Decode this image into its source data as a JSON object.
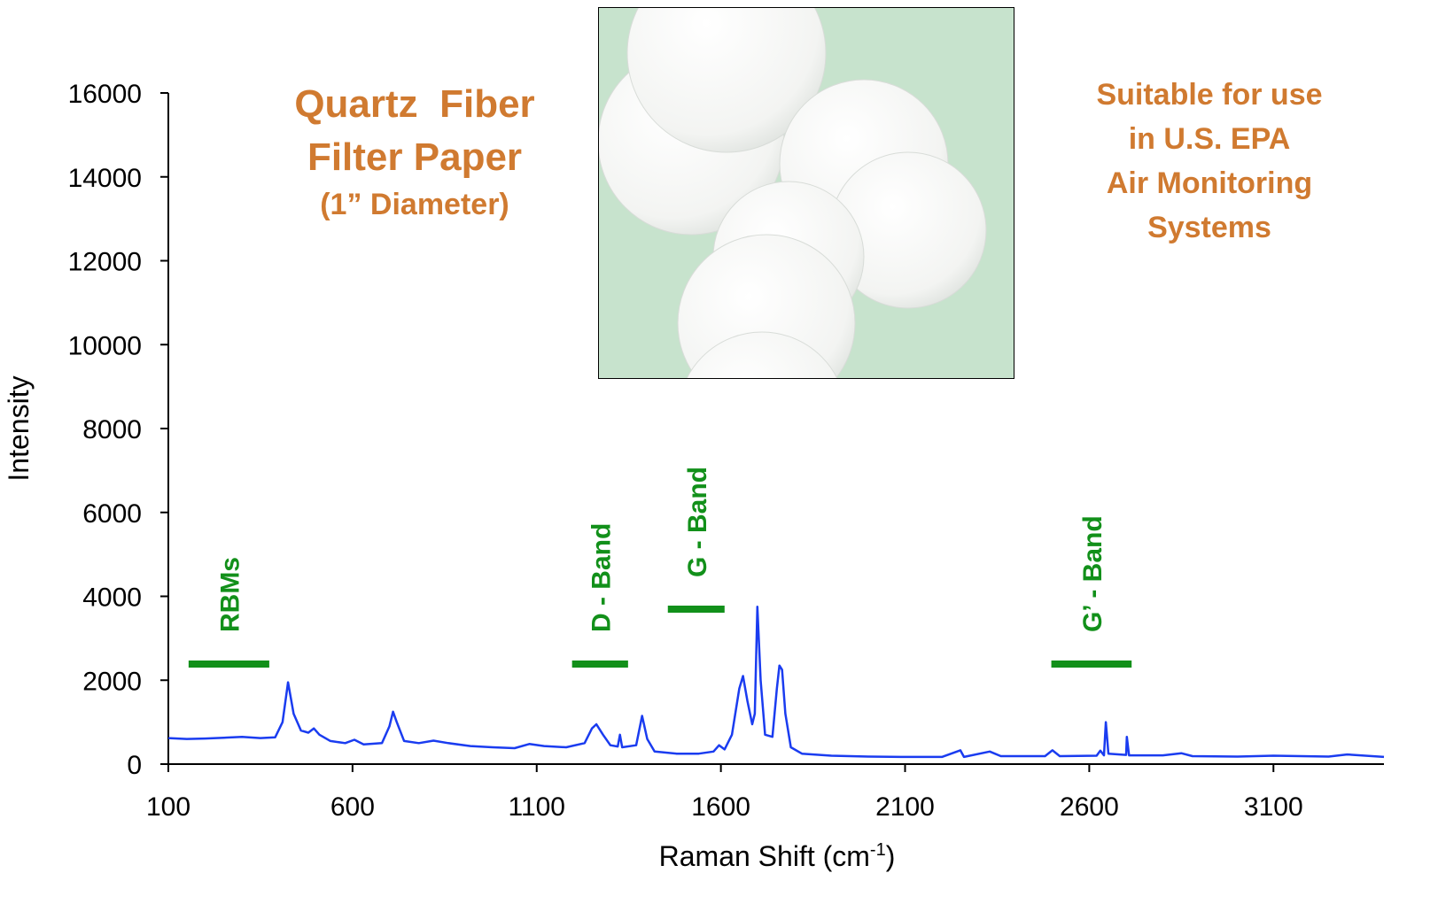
{
  "chart_data": {
    "type": "line",
    "y_label": "Intensity",
    "x_label": {
      "text": "Raman Shift (cm",
      "superscript": "-1",
      "suffix": ")"
    },
    "annotations": [
      {
        "lines": [
          "Quartz  Fiber",
          "Filter Paper",
          "(1” Diameter)"
        ],
        "color": "#d07a30"
      },
      {
        "lines": [
          "Suitable for use",
          "in U.S. EPA",
          "Air Monitoring",
          "Systems"
        ],
        "color": "#d07a30"
      }
    ],
    "bands": [
      {
        "label": "RBMs",
        "x": [
          155,
          374
        ],
        "y": 2385
      },
      {
        "label": "D - Band",
        "x": [
          1196,
          1348
        ],
        "y": 2385
      },
      {
        "label": "G - Band",
        "x": [
          1456,
          1610
        ],
        "y": 3694
      },
      {
        "label": "G’ - Band",
        "x": [
          2497,
          2715
        ],
        "y": 2385
      }
    ],
    "band_color": "#12901a",
    "x": [
      100,
      150,
      200,
      250,
      300,
      350,
      390,
      410,
      425,
      440,
      460,
      480,
      495,
      510,
      540,
      580,
      605,
      630,
      680,
      700,
      710,
      720,
      740,
      780,
      820,
      860,
      920,
      980,
      1040,
      1080,
      1120,
      1180,
      1230,
      1250,
      1262,
      1280,
      1300,
      1320,
      1326,
      1332,
      1370,
      1386,
      1400,
      1420,
      1480,
      1540,
      1580,
      1595,
      1610,
      1630,
      1650,
      1660,
      1672,
      1685,
      1692,
      1699,
      1708,
      1720,
      1740,
      1752,
      1759,
      1766,
      1775,
      1790,
      1820,
      1900,
      2000,
      2100,
      2200,
      2250,
      2260,
      2330,
      2360,
      2480,
      2500,
      2520,
      2620,
      2630,
      2640,
      2645,
      2652,
      2700,
      2702,
      2708,
      2800,
      2850,
      2880,
      3000,
      3100,
      3250,
      3300,
      3400
    ],
    "series": [
      {
        "color": "#1a3cf0",
        "values": [
          620,
          600,
          610,
          630,
          650,
          620,
          640,
          1000,
          1950,
          1200,
          800,
          750,
          850,
          700,
          550,
          500,
          580,
          470,
          500,
          900,
          1250,
          1000,
          550,
          500,
          560,
          500,
          430,
          400,
          380,
          480,
          430,
          400,
          500,
          850,
          950,
          700,
          450,
          420,
          700,
          400,
          450,
          1150,
          600,
          300,
          250,
          250,
          300,
          450,
          350,
          700,
          1800,
          2100,
          1500,
          950,
          1200,
          3750,
          2000,
          700,
          650,
          1800,
          2350,
          2250,
          1200,
          400,
          250,
          200,
          180,
          170,
          170,
          330,
          170,
          300,
          190,
          190,
          330,
          190,
          200,
          320,
          210,
          1000,
          250,
          220,
          650,
          210,
          210,
          260,
          190,
          180,
          200,
          180,
          230,
          170
        ]
      }
    ],
    "xlim": [
      100,
      3400
    ],
    "ylim": [
      0,
      16000
    ],
    "xticks": [
      100,
      600,
      1100,
      1600,
      2100,
      2600,
      3100
    ],
    "yticks": [
      0,
      2000,
      4000,
      6000,
      8000,
      10000,
      12000,
      14000,
      16000
    ]
  }
}
